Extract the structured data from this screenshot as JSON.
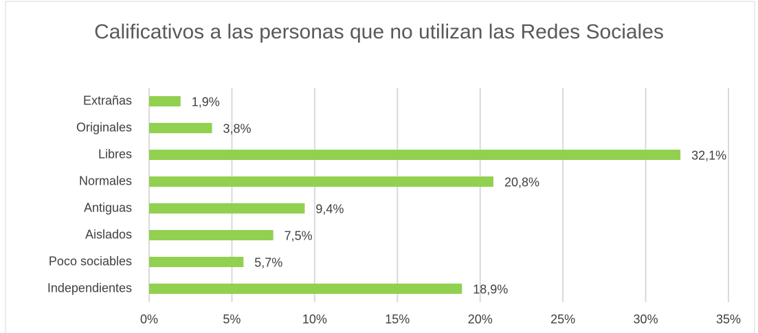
{
  "chart_data": {
    "type": "barh",
    "title": "Calificativos a las personas que no utilizan las Redes Sociales",
    "categories": [
      "Extrañas",
      "Originales",
      "Libres",
      "Normales",
      "Antiguas",
      "Aislados",
      "Poco sociables",
      "Independientes"
    ],
    "values": [
      1.9,
      3.8,
      32.1,
      20.8,
      9.4,
      7.5,
      5.7,
      18.9
    ],
    "value_labels": [
      "1,9%",
      "3,8%",
      "32,1%",
      "20,8%",
      "9,4%",
      "7,5%",
      "5,7%",
      "18,9%"
    ],
    "color": "#92d050",
    "xlim": [
      0,
      35
    ],
    "xticks": [
      {
        "value": 0,
        "label": "0%"
      },
      {
        "value": 5,
        "label": "5%"
      },
      {
        "value": 10,
        "label": "10%"
      },
      {
        "value": 15,
        "label": "15%"
      },
      {
        "value": 20,
        "label": "20%"
      },
      {
        "value": 25,
        "label": "25%"
      },
      {
        "value": 30,
        "label": "30%"
      },
      {
        "value": 35,
        "label": "35%"
      }
    ],
    "grid": true
  }
}
